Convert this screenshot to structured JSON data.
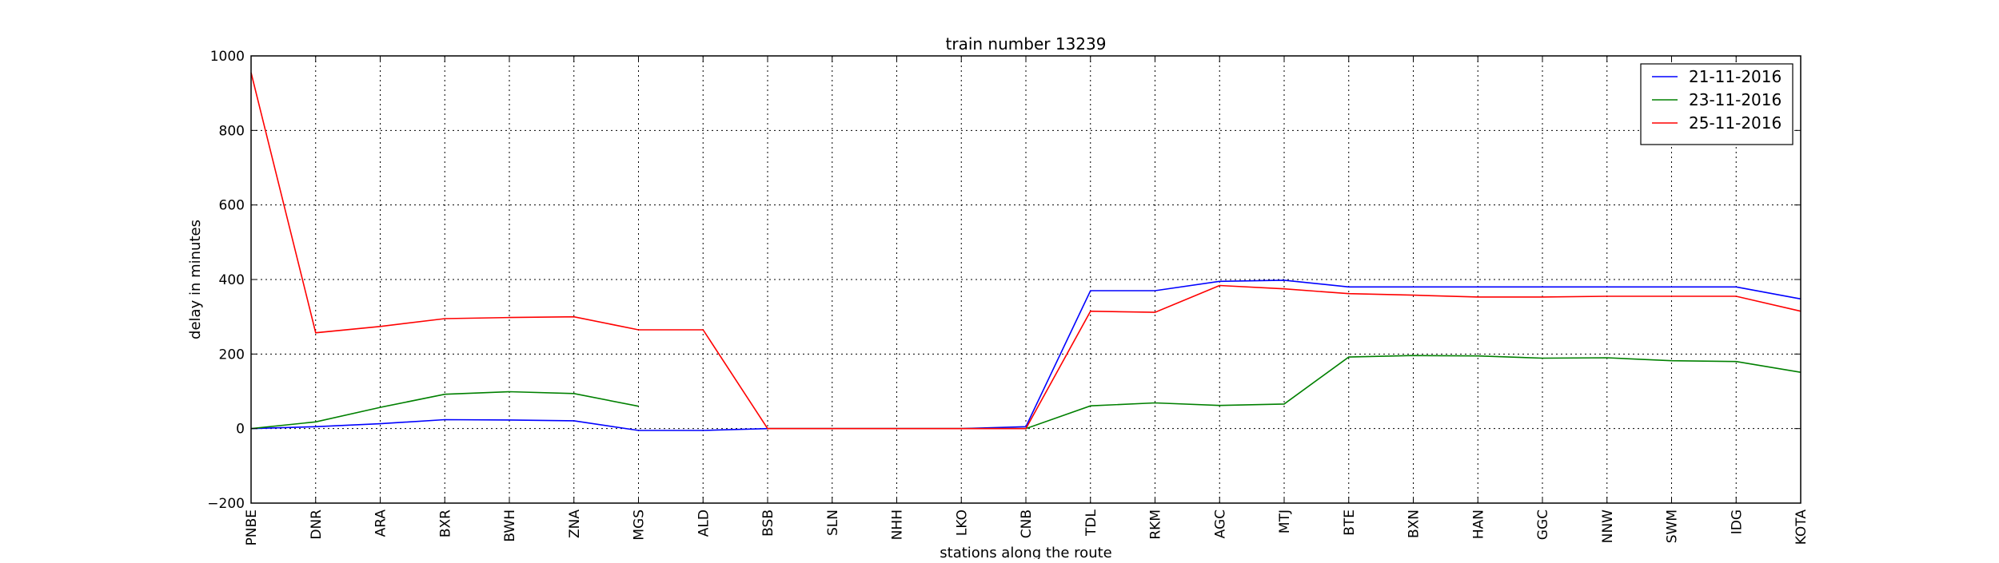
{
  "chart_data": {
    "type": "line",
    "title": "train number 13239",
    "xlabel": "stations along the route",
    "ylabel": "delay in minutes",
    "ylim": [
      -200,
      1000
    ],
    "yticks": [
      -200,
      0,
      200,
      400,
      600,
      800,
      1000
    ],
    "ytick_labels": [
      "−200",
      "0",
      "200",
      "400",
      "600",
      "800",
      "1000"
    ],
    "grid": true,
    "legend_position": "top-right",
    "categories": [
      "PNBE",
      "DNR",
      "ARA",
      "BXR",
      "BWH",
      "ZNA",
      "MGS",
      "ALD",
      "BSB",
      "SLN",
      "NHH",
      "LKO",
      "CNB",
      "TDL",
      "RKM",
      "AGC",
      "MTJ",
      "BTE",
      "BXN",
      "HAN",
      "GGC",
      "NNW",
      "SWM",
      "IDG",
      "KOTA"
    ],
    "series": [
      {
        "name": "21-11-2016",
        "color": "#0000ff",
        "values": [
          0,
          5,
          13,
          24,
          23,
          21,
          -5,
          -5,
          0,
          0,
          0,
          0,
          5,
          370,
          370,
          395,
          398,
          380,
          380,
          380,
          380,
          380,
          380,
          380,
          348
        ]
      },
      {
        "name": "23-11-2016",
        "color": "#008000",
        "values": [
          0,
          18,
          57,
          92,
          99,
          94,
          60,
          null,
          0,
          0,
          0,
          0,
          0,
          61,
          69,
          62,
          66,
          192,
          196,
          195,
          189,
          190,
          182,
          180,
          151
        ]
      },
      {
        "name": "25-11-2016",
        "color": "#ff0000",
        "values": [
          955,
          257,
          274,
          295,
          298,
          300,
          265,
          265,
          0,
          0,
          0,
          0,
          0,
          315,
          312,
          384,
          375,
          362,
          358,
          353,
          353,
          355,
          355,
          355,
          315
        ]
      }
    ]
  }
}
